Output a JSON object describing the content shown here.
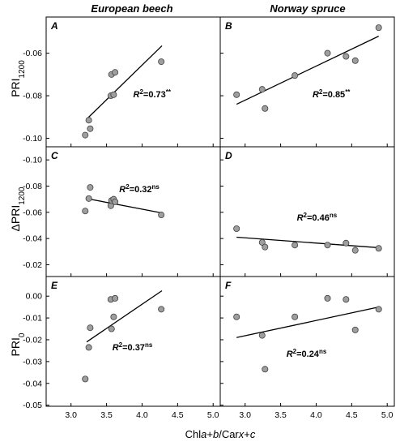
{
  "figure": {
    "columns": [
      "European beech",
      "Norway spruce"
    ],
    "row_ylabels": [
      {
        "base": "PRI",
        "sub": "1200",
        "prefix": ""
      },
      {
        "base": "PRI",
        "sub": "1200",
        "prefix": "Δ"
      },
      {
        "base": "PRI",
        "sub": "0",
        "prefix": ""
      }
    ],
    "xlabel": {
      "p1": "Chl",
      "p2": "a",
      "p3": "+",
      "p4": "b",
      "p5": "/Car",
      "p6": "x",
      "p7": "+",
      "p8": "c"
    }
  },
  "chart_data": [
    {
      "type": "scatter",
      "panel": "A",
      "column": "European beech",
      "xlim": [
        2.65,
        5.1
      ],
      "ylim": [
        -0.104,
        -0.043
      ],
      "y_inverted": false,
      "xticks": [
        "3.0",
        "3.5",
        "4.0",
        "4.5",
        "5.0"
      ],
      "yticks": [
        {
          "v": -0.06,
          "label": "-0.06"
        },
        {
          "v": -0.08,
          "label": "-0.08"
        },
        {
          "v": -0.1,
          "label": "-0.10"
        }
      ],
      "points": [
        [
          3.2,
          -0.0985
        ],
        [
          3.25,
          -0.0915
        ],
        [
          3.27,
          -0.0955
        ],
        [
          3.56,
          -0.08
        ],
        [
          3.57,
          -0.07
        ],
        [
          3.6,
          -0.0795
        ],
        [
          3.62,
          -0.069
        ],
        [
          4.27,
          -0.064
        ]
      ],
      "fit": [
        [
          3.22,
          -0.091
        ],
        [
          4.28,
          -0.0565
        ]
      ],
      "r2": {
        "base": "R",
        "exp": "2",
        "value": "=0.73",
        "sig": "**"
      }
    },
    {
      "type": "scatter",
      "panel": "B",
      "column": "Norway spruce",
      "xlim": [
        2.65,
        5.1
      ],
      "ylim": [
        -0.104,
        -0.043
      ],
      "y_inverted": false,
      "xticks": [
        "3.0",
        "3.5",
        "4.0",
        "4.5",
        "5.0"
      ],
      "yticks": [
        {
          "v": -0.06,
          "label": ""
        },
        {
          "v": -0.08,
          "label": ""
        },
        {
          "v": -0.1,
          "label": ""
        }
      ],
      "points": [
        [
          2.88,
          -0.0795
        ],
        [
          3.24,
          -0.077
        ],
        [
          3.28,
          -0.086
        ],
        [
          3.7,
          -0.0705
        ],
        [
          4.16,
          -0.06
        ],
        [
          4.42,
          -0.0615
        ],
        [
          4.55,
          -0.0635
        ],
        [
          4.88,
          -0.048
        ]
      ],
      "fit": [
        [
          2.88,
          -0.084
        ],
        [
          4.88,
          -0.052
        ]
      ],
      "r2": {
        "base": "R",
        "exp": "2",
        "value": "=0.85",
        "sig": "**"
      }
    },
    {
      "type": "scatter",
      "panel": "C",
      "column": "European beech",
      "xlim": [
        2.65,
        5.1
      ],
      "ylim": [
        -0.11,
        -0.011
      ],
      "y_inverted": true,
      "xticks": [
        "3.0",
        "3.5",
        "4.0",
        "4.5",
        "5.0"
      ],
      "yticks": [
        {
          "v": -0.1,
          "label": "-0.10"
        },
        {
          "v": -0.08,
          "label": "-0.08"
        },
        {
          "v": -0.06,
          "label": "-0.06"
        },
        {
          "v": -0.04,
          "label": "-0.04"
        },
        {
          "v": -0.02,
          "label": "-0.02"
        }
      ],
      "points": [
        [
          3.2,
          -0.061
        ],
        [
          3.25,
          -0.0705
        ],
        [
          3.27,
          -0.079
        ],
        [
          3.56,
          -0.065
        ],
        [
          3.57,
          -0.069
        ],
        [
          3.6,
          -0.07
        ],
        [
          3.62,
          -0.068
        ],
        [
          4.27,
          -0.058
        ]
      ],
      "fit": [
        [
          3.22,
          -0.0705
        ],
        [
          4.28,
          -0.0595
        ]
      ],
      "r2": {
        "base": "R",
        "exp": "2",
        "value": "=0.32",
        "sig": "ns"
      }
    },
    {
      "type": "scatter",
      "panel": "D",
      "column": "Norway spruce",
      "xlim": [
        2.65,
        5.1
      ],
      "ylim": [
        -0.11,
        -0.011
      ],
      "y_inverted": true,
      "xticks": [
        "3.0",
        "3.5",
        "4.0",
        "4.5",
        "5.0"
      ],
      "yticks": [
        {
          "v": -0.1,
          "label": ""
        },
        {
          "v": -0.08,
          "label": ""
        },
        {
          "v": -0.06,
          "label": ""
        },
        {
          "v": -0.04,
          "label": ""
        },
        {
          "v": -0.02,
          "label": ""
        }
      ],
      "points": [
        [
          2.88,
          -0.0475
        ],
        [
          3.24,
          -0.037
        ],
        [
          3.28,
          -0.0335
        ],
        [
          3.7,
          -0.035
        ],
        [
          4.16,
          -0.035
        ],
        [
          4.42,
          -0.0365
        ],
        [
          4.55,
          -0.031
        ],
        [
          4.88,
          -0.0325
        ]
      ],
      "fit": [
        [
          2.88,
          -0.041
        ],
        [
          4.88,
          -0.033
        ]
      ],
      "r2": {
        "base": "R",
        "exp": "2",
        "value": "=0.46",
        "sig": "ns"
      }
    },
    {
      "type": "scatter",
      "panel": "E",
      "column": "European beech",
      "xlim": [
        2.65,
        5.1
      ],
      "ylim": [
        -0.0505,
        0.009
      ],
      "y_inverted": false,
      "xticks": [
        "3.0",
        "3.5",
        "4.0",
        "4.5",
        "5.0"
      ],
      "yticks": [
        {
          "v": 0.0,
          "label": "0.00"
        },
        {
          "v": -0.01,
          "label": "-0.01"
        },
        {
          "v": -0.02,
          "label": "-0.02"
        },
        {
          "v": -0.03,
          "label": "-0.03"
        },
        {
          "v": -0.04,
          "label": "-0.04"
        },
        {
          "v": -0.05,
          "label": "-0.05"
        }
      ],
      "points": [
        [
          3.2,
          -0.038
        ],
        [
          3.25,
          -0.0235
        ],
        [
          3.27,
          -0.0145
        ],
        [
          3.56,
          -0.0015
        ],
        [
          3.57,
          -0.015
        ],
        [
          3.6,
          -0.0095
        ],
        [
          3.62,
          -0.001
        ],
        [
          4.27,
          -0.006
        ]
      ],
      "fit": [
        [
          3.22,
          -0.021
        ],
        [
          4.28,
          0.0025
        ]
      ],
      "r2": {
        "base": "R",
        "exp": "2",
        "value": "=0.37",
        "sig": "ns"
      }
    },
    {
      "type": "scatter",
      "panel": "F",
      "column": "Norway spruce",
      "xlim": [
        2.65,
        5.1
      ],
      "ylim": [
        -0.0505,
        0.009
      ],
      "y_inverted": false,
      "xticks": [
        "3.0",
        "3.5",
        "4.0",
        "4.5",
        "5.0"
      ],
      "yticks": [
        {
          "v": 0.0,
          "label": ""
        },
        {
          "v": -0.01,
          "label": ""
        },
        {
          "v": -0.02,
          "label": ""
        },
        {
          "v": -0.03,
          "label": ""
        },
        {
          "v": -0.04,
          "label": ""
        },
        {
          "v": -0.05,
          "label": ""
        }
      ],
      "points": [
        [
          2.88,
          -0.0095
        ],
        [
          3.24,
          -0.018
        ],
        [
          3.28,
          -0.0335
        ],
        [
          3.7,
          -0.0095
        ],
        [
          4.16,
          -0.001
        ],
        [
          4.42,
          -0.0015
        ],
        [
          4.55,
          -0.0155
        ],
        [
          4.88,
          -0.006
        ]
      ],
      "fit": [
        [
          2.88,
          -0.019
        ],
        [
          4.88,
          -0.005
        ]
      ],
      "r2": {
        "base": "R",
        "exp": "2",
        "value": "=0.24",
        "sig": "ns"
      }
    }
  ]
}
